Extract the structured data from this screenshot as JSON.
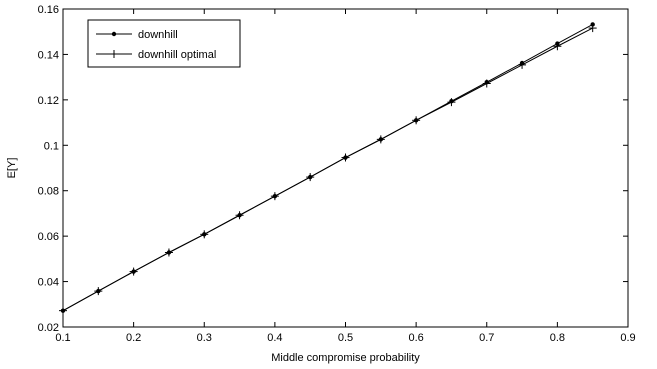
{
  "chart_data": {
    "type": "line",
    "title": "",
    "xlabel": "Middle compromise probability",
    "ylabel": "E[Y]",
    "xlim": [
      0.1,
      0.9
    ],
    "ylim": [
      0.02,
      0.16
    ],
    "xticks": [
      "0.1",
      "0.2",
      "0.3",
      "0.4",
      "0.5",
      "0.6",
      "0.7",
      "0.8",
      "0.9"
    ],
    "yticks": [
      "0.02",
      "0.04",
      "0.06",
      "0.08",
      "0.1",
      "0.12",
      "0.14",
      "0.16"
    ],
    "grid": false,
    "legend": "top-left",
    "x": [
      0.1,
      0.15,
      0.2,
      0.25,
      0.3,
      0.35,
      0.4,
      0.45,
      0.5,
      0.55,
      0.6,
      0.65,
      0.7,
      0.75,
      0.8,
      0.85
    ],
    "series": [
      {
        "name": "downhill",
        "marker": "dot",
        "values": [
          0.0272,
          0.0358,
          0.0444,
          0.0528,
          0.0608,
          0.0692,
          0.0776,
          0.086,
          0.0946,
          0.1026,
          0.111,
          0.1194,
          0.1278,
          0.1362,
          0.1448,
          0.1532
        ]
      },
      {
        "name": "downhill optimal",
        "marker": "plus",
        "values": [
          0.0272,
          0.0358,
          0.0444,
          0.0528,
          0.0608,
          0.0692,
          0.0776,
          0.086,
          0.0946,
          0.1026,
          0.111,
          0.119,
          0.1272,
          0.1354,
          0.1436,
          0.1516
        ]
      }
    ],
    "colors": {
      "line": "#000000",
      "axes": "#000000",
      "background": "#ffffff"
    }
  }
}
